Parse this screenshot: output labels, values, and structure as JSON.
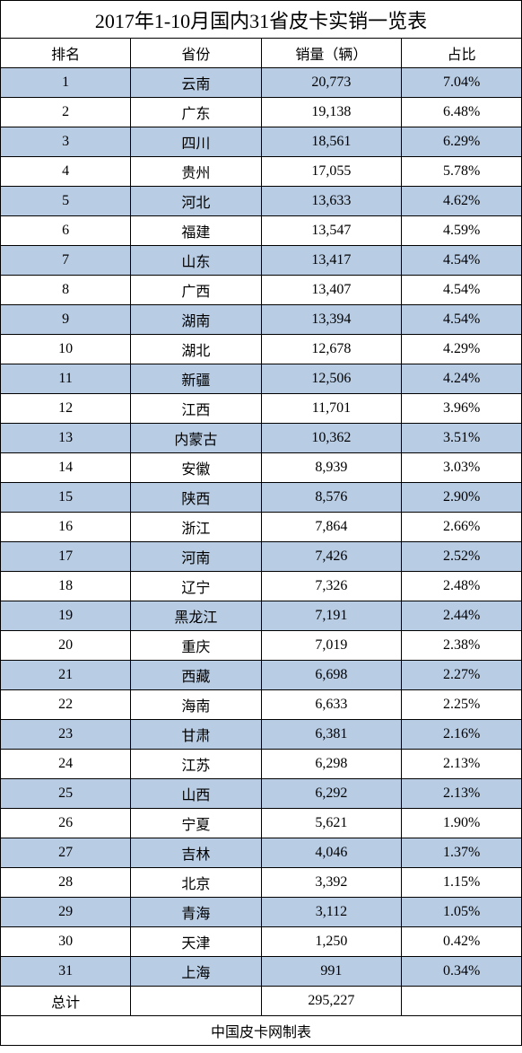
{
  "title": "2017年1-10月国内31省皮卡实销一览表",
  "columns": [
    "排名",
    "省份",
    "销量（辆）",
    "占比"
  ],
  "rows": [
    {
      "rank": "1",
      "province": "云南",
      "sales": "20,773",
      "share": "7.04%"
    },
    {
      "rank": "2",
      "province": "广东",
      "sales": "19,138",
      "share": "6.48%"
    },
    {
      "rank": "3",
      "province": "四川",
      "sales": "18,561",
      "share": "6.29%"
    },
    {
      "rank": "4",
      "province": "贵州",
      "sales": "17,055",
      "share": "5.78%"
    },
    {
      "rank": "5",
      "province": "河北",
      "sales": "13,633",
      "share": "4.62%"
    },
    {
      "rank": "6",
      "province": "福建",
      "sales": "13,547",
      "share": "4.59%"
    },
    {
      "rank": "7",
      "province": "山东",
      "sales": "13,417",
      "share": "4.54%"
    },
    {
      "rank": "8",
      "province": "广西",
      "sales": "13,407",
      "share": "4.54%"
    },
    {
      "rank": "9",
      "province": "湖南",
      "sales": "13,394",
      "share": "4.54%"
    },
    {
      "rank": "10",
      "province": "湖北",
      "sales": "12,678",
      "share": "4.29%"
    },
    {
      "rank": "11",
      "province": "新疆",
      "sales": "12,506",
      "share": "4.24%"
    },
    {
      "rank": "12",
      "province": "江西",
      "sales": "11,701",
      "share": "3.96%"
    },
    {
      "rank": "13",
      "province": "内蒙古",
      "sales": "10,362",
      "share": "3.51%"
    },
    {
      "rank": "14",
      "province": "安徽",
      "sales": "8,939",
      "share": "3.03%"
    },
    {
      "rank": "15",
      "province": "陕西",
      "sales": "8,576",
      "share": "2.90%"
    },
    {
      "rank": "16",
      "province": "浙江",
      "sales": "7,864",
      "share": "2.66%"
    },
    {
      "rank": "17",
      "province": "河南",
      "sales": "7,426",
      "share": "2.52%"
    },
    {
      "rank": "18",
      "province": "辽宁",
      "sales": "7,326",
      "share": "2.48%"
    },
    {
      "rank": "19",
      "province": "黑龙江",
      "sales": "7,191",
      "share": "2.44%"
    },
    {
      "rank": "20",
      "province": "重庆",
      "sales": "7,019",
      "share": "2.38%"
    },
    {
      "rank": "21",
      "province": "西藏",
      "sales": "6,698",
      "share": "2.27%"
    },
    {
      "rank": "22",
      "province": "海南",
      "sales": "6,633",
      "share": "2.25%"
    },
    {
      "rank": "23",
      "province": "甘肃",
      "sales": "6,381",
      "share": "2.16%"
    },
    {
      "rank": "24",
      "province": "江苏",
      "sales": "6,298",
      "share": "2.13%"
    },
    {
      "rank": "25",
      "province": "山西",
      "sales": "6,292",
      "share": "2.13%"
    },
    {
      "rank": "26",
      "province": "宁夏",
      "sales": "5,621",
      "share": "1.90%"
    },
    {
      "rank": "27",
      "province": "吉林",
      "sales": "4,046",
      "share": "1.37%"
    },
    {
      "rank": "28",
      "province": "北京",
      "sales": "3,392",
      "share": "1.15%"
    },
    {
      "rank": "29",
      "province": "青海",
      "sales": "3,112",
      "share": "1.05%"
    },
    {
      "rank": "30",
      "province": "天津",
      "sales": "1,250",
      "share": "0.42%"
    },
    {
      "rank": "31",
      "province": "上海",
      "sales": "991",
      "share": "0.34%"
    }
  ],
  "total": {
    "label": "总计",
    "province": "",
    "sales": "295,227",
    "share": ""
  },
  "footer": "中国皮卡网制表",
  "colors": {
    "odd_row_bg": "#b8cce4",
    "even_row_bg": "#ffffff",
    "border": "#000000",
    "text": "#000000"
  },
  "column_widths": [
    "25%",
    "25%",
    "27%",
    "23%"
  ],
  "font": {
    "title_size": 22,
    "body_size": 16,
    "family": "SimSun"
  }
}
